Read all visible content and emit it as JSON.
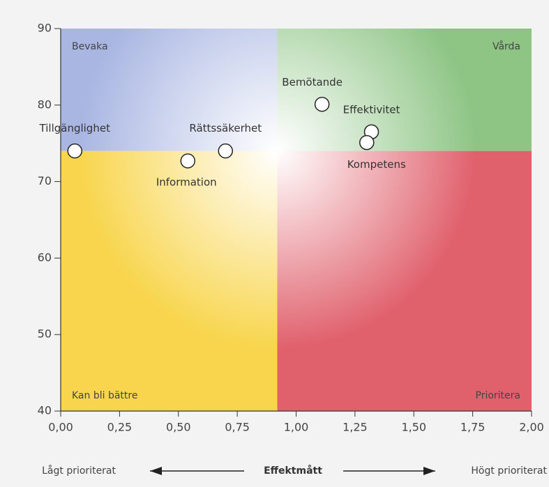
{
  "chart_data": {
    "type": "scatter",
    "points": [
      {
        "label": "Tillgänglighet",
        "x": 0.06,
        "y": 74.0
      },
      {
        "label": "Information",
        "x": 0.54,
        "y": 72.7
      },
      {
        "label": "Rättssäkerhet",
        "x": 0.7,
        "y": 74.0
      },
      {
        "label": "Bemötande",
        "x": 1.11,
        "y": 80.1
      },
      {
        "label": "Effektivitet",
        "x": 1.32,
        "y": 76.5
      },
      {
        "label": "Kompetens",
        "x": 1.3,
        "y": 75.1
      }
    ],
    "quadrant_split": {
      "x": 0.92,
      "y": 74
    },
    "quadrants": {
      "top_left": "Bevaka",
      "top_right": "Vårda",
      "bottom_left": "Kan bli bättre",
      "bottom_right": "Prioritera"
    },
    "quadrant_colors": {
      "top_left": "#a9b6e2",
      "top_right": "#8ec585",
      "bottom_left": "#f8d54c",
      "bottom_right": "#e0606c"
    },
    "xlim": [
      0,
      2
    ],
    "xticks": [
      {
        "value": 0,
        "label": "0,00"
      },
      {
        "value": 0.25,
        "label": "0,25"
      },
      {
        "value": 0.5,
        "label": "0,50"
      },
      {
        "value": 0.75,
        "label": "0,75"
      },
      {
        "value": 1,
        "label": "1,00"
      },
      {
        "value": 1.25,
        "label": "1,25"
      },
      {
        "value": 1.5,
        "label": "1,50"
      },
      {
        "value": 1.75,
        "label": "1,75"
      },
      {
        "value": 2,
        "label": "2,00"
      }
    ],
    "ylim": [
      40,
      90
    ],
    "yticks": [
      40,
      50,
      60,
      70,
      80,
      90
    ],
    "xlabel": "Effektmått",
    "x_left_note": "Lågt prioriterat",
    "x_right_note": "Högt prioriterat"
  }
}
